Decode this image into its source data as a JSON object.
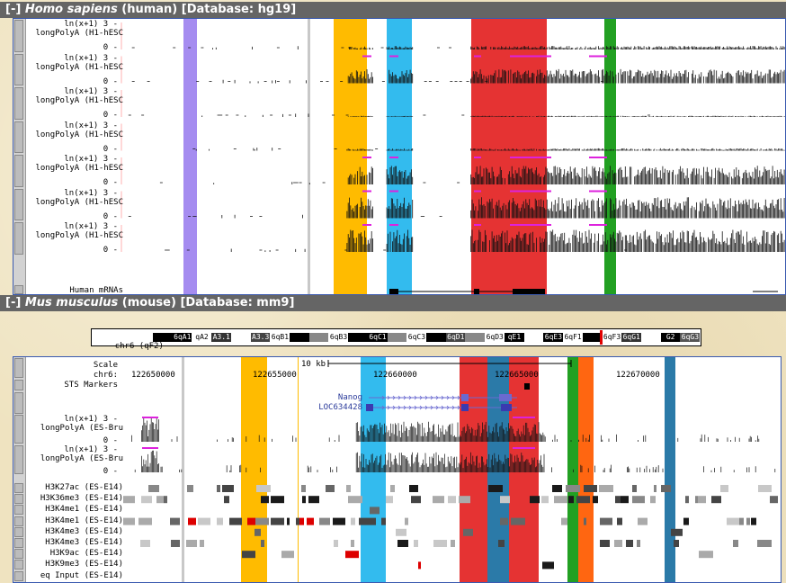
{
  "human": {
    "header": {
      "toggle": "[-]",
      "species": "Homo sapiens",
      "common": "(human)",
      "database": "[Database: hg19]"
    },
    "tracks": [
      {
        "scale": "ln(x+1) 3 -",
        "name": "longPolyA (H1-hESC",
        "zero": "0 -"
      },
      {
        "scale": "ln(x+1) 3 -",
        "name": "longPolyA (H1-hESC",
        "zero": "0 -"
      },
      {
        "scale": "ln(x+1) 3 -",
        "name": "longPolyA (H1-hESC",
        "zero": "0 -"
      },
      {
        "scale": "ln(x+1) 3 -",
        "name": "longPolyA (H1-hESC",
        "zero": "0 -"
      },
      {
        "scale": "ln(x+1) 3 -",
        "name": "longPolyA (H1-hESC",
        "zero": "0 -"
      },
      {
        "scale": "ln(x+1) 3 -",
        "name": "longPolyA (H1-hESC",
        "zero": "0 -"
      },
      {
        "scale": "ln(x+1) 3 -",
        "name": "longPolyA (H1-hESC",
        "zero": "0 -"
      }
    ],
    "mrna_label": "Human mRNAs",
    "highlight_colors": [
      "#a58cf0",
      "#c8c8c8",
      "#ffbb00",
      "#33bbee",
      "#e53333",
      "#22a022"
    ]
  },
  "mouse": {
    "header": {
      "toggle": "[-]",
      "species": "Mus musculus",
      "common": "(mouse)",
      "database": "[Database: mm9]"
    },
    "ideogram": {
      "chrom": "chr6",
      "band": "(qF2)",
      "bands": [
        {
          "label": "",
          "shade": "#000000"
        },
        {
          "label": "6qA1",
          "shade": "#000000"
        },
        {
          "label": "qA2",
          "shade": "#ffffff"
        },
        {
          "label": "A3.1",
          "shade": "#333333"
        },
        {
          "label": "",
          "shade": "#ffffff"
        },
        {
          "label": "A3.3",
          "shade": "#444444"
        },
        {
          "label": "6qB1",
          "shade": "#ffffff"
        },
        {
          "label": "",
          "shade": "#000000"
        },
        {
          "label": "",
          "shade": "#888888"
        },
        {
          "label": "6qB3",
          "shade": "#ffffff"
        },
        {
          "label": "",
          "shade": "#000000"
        },
        {
          "label": "6qC1",
          "shade": "#000000"
        },
        {
          "label": "",
          "shade": "#888888"
        },
        {
          "label": "6qC3",
          "shade": "#ffffff"
        },
        {
          "label": "",
          "shade": "#000000"
        },
        {
          "label": "6qD1",
          "shade": "#444444"
        },
        {
          "label": "",
          "shade": "#888888"
        },
        {
          "label": "6qD3",
          "shade": "#ffffff"
        },
        {
          "label": "qE1",
          "shade": "#000000"
        },
        {
          "label": "",
          "shade": "#ffffff"
        },
        {
          "label": "6qE3",
          "shade": "#000000"
        },
        {
          "label": "6qF1",
          "shade": "#ffffff"
        },
        {
          "label": "",
          "shade": "#000000"
        },
        {
          "label": "6qF3",
          "shade": "#ffffff"
        },
        {
          "label": "6qG1",
          "shade": "#333333"
        },
        {
          "label": "",
          "shade": "#ffffff"
        },
        {
          "label": "G2",
          "shade": "#000000"
        },
        {
          "label": "6qG3",
          "shade": "#555555"
        }
      ]
    },
    "scale_label": "Scale",
    "scale_bar": "10 kb",
    "chrom_label": "chr6:",
    "positions": [
      "122650000",
      "122655000",
      "122660000",
      "122665000",
      "122670000"
    ],
    "sts_label": "STS Markers",
    "genes": [
      {
        "name": "Nanog"
      },
      {
        "name": "LOC634428"
      }
    ],
    "signal_tracks": [
      {
        "scale": "ln(x+1) 3 -",
        "name": "longPolyA (ES-Bru",
        "zero": "0 -"
      },
      {
        "scale": "ln(x+1) 3 -",
        "name": "longPolyA (ES-Bru",
        "zero": "0 -"
      }
    ],
    "chip_tracks": [
      "H3K27ac (ES-E14)",
      "H3K36me3 (ES-E14)",
      "H3K4me1 (ES-E14)",
      "H3K4me1 (ES-E14)",
      "H3K4me3 (ES-E14)",
      "H3K4me3 (ES-E14)",
      "H3K9ac (ES-E14)",
      "H3K9me3 (ES-E14)",
      "eq Input (ES-E14)"
    ],
    "highlight_colors": [
      "#c8c8c8",
      "#ffbb00",
      "#33bbee",
      "#e53333",
      "#2b7aa8",
      "#22a022",
      "#ff6611"
    ]
  }
}
